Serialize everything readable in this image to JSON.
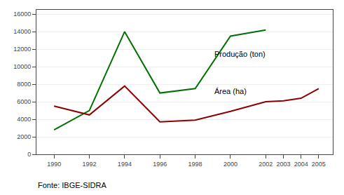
{
  "chart_data": {
    "type": "line",
    "x": [
      1990,
      1992,
      1994,
      1996,
      1998,
      2000,
      2002,
      2003,
      2004,
      2005
    ],
    "series": [
      {
        "name": "Produção (ton)",
        "color": "#007000",
        "values": [
          2800,
          5000,
          14000,
          7000,
          7500,
          13500,
          14200,
          null,
          null,
          null
        ]
      },
      {
        "name": "Área (ha)",
        "color": "#8B0000",
        "values": [
          5500,
          4500,
          7800,
          3700,
          3900,
          4900,
          6000,
          6100,
          6400,
          7500
        ]
      }
    ],
    "annotations": [
      {
        "text": "Produção (ton)",
        "x": 1999.0,
        "y": 10800
      },
      {
        "text": "Área (ha)",
        "x": 1999.0,
        "y": 6600
      },
      {
        "text": "Fonte: IBGE-SIDRA"
      }
    ],
    "xlim": [
      1989.0,
      2005.8
    ],
    "xticks": [
      1990,
      1992,
      1994,
      1996,
      1998,
      2000,
      2002,
      2003,
      2004,
      2005
    ],
    "ylim": [
      0,
      16500
    ],
    "yticks": [
      0,
      2000,
      4000,
      6000,
      8000,
      10000,
      12000,
      14000,
      16000
    ],
    "grid": "y"
  }
}
